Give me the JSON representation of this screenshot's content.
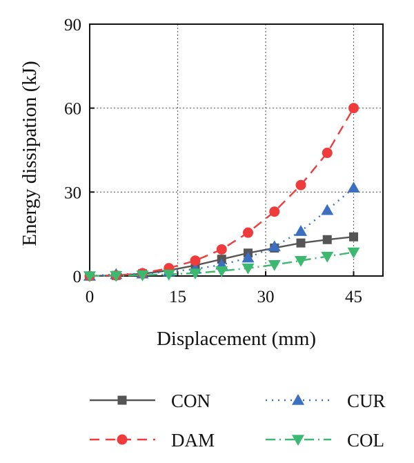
{
  "chart_data": {
    "type": "line",
    "xlabel": "Displacement (mm)",
    "ylabel": "Energy dissipation (kJ)",
    "xlim": [
      0,
      50
    ],
    "ylim": [
      0,
      90
    ],
    "xticks": [
      0,
      15,
      30,
      45
    ],
    "yticks": [
      0,
      30,
      60,
      90
    ],
    "grid": true,
    "legend_position": "bottom",
    "series": [
      {
        "name": "CON",
        "color": "#555555",
        "marker": "square",
        "line_style": "solid",
        "x": [
          0,
          4.5,
          9,
          13.5,
          18,
          22.5,
          27,
          31.5,
          36,
          40.5,
          45
        ],
        "y": [
          0,
          0.2,
          0.8,
          2.0,
          3.8,
          6.0,
          8.2,
          10.0,
          11.8,
          13.0,
          14.0
        ]
      },
      {
        "name": "CUR",
        "color": "#3a6fc2",
        "marker": "triangle-up",
        "line_style": "dotted",
        "x": [
          0,
          4.5,
          9,
          13.5,
          18,
          22.5,
          27,
          31.5,
          36,
          40.5,
          45
        ],
        "y": [
          0,
          0.6,
          0.8,
          1.5,
          2.5,
          4.0,
          6.5,
          10.5,
          16.0,
          23.5,
          31.5
        ]
      },
      {
        "name": "DAM",
        "color": "#ef3b3b",
        "marker": "circle",
        "line_style": "dashed",
        "x": [
          0,
          4.5,
          9,
          13.5,
          18,
          22.5,
          27,
          31.5,
          36,
          40.5,
          45
        ],
        "y": [
          0,
          0.2,
          1.0,
          2.8,
          5.5,
          9.5,
          15.5,
          23.0,
          32.5,
          44.0,
          60.0
        ]
      },
      {
        "name": "COL",
        "color": "#3cb870",
        "marker": "triangle-down",
        "line_style": "dashdot",
        "x": [
          0,
          4.5,
          9,
          13.5,
          18,
          22.5,
          27,
          31.5,
          36,
          40.5,
          45
        ],
        "y": [
          0,
          0.1,
          0.3,
          0.6,
          1.0,
          1.8,
          2.8,
          4.0,
          5.5,
          7.0,
          8.5
        ]
      }
    ],
    "legend": [
      {
        "name": "CON",
        "column": 0,
        "row": 0
      },
      {
        "name": "CUR",
        "column": 1,
        "row": 0
      },
      {
        "name": "DAM",
        "column": 0,
        "row": 1
      },
      {
        "name": "COL",
        "column": 1,
        "row": 1
      }
    ]
  }
}
